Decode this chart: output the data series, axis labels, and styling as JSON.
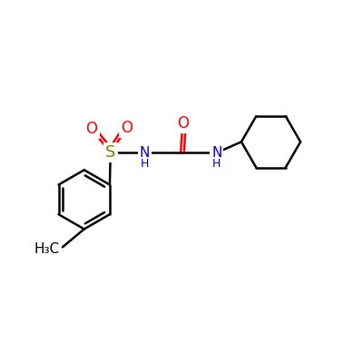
{
  "bg_color": "#ffffff",
  "bond_color": "#000000",
  "bond_width": 1.8,
  "S_color": "#808000",
  "O_color": "#ff0000",
  "N_color": "#0000cc",
  "figsize": [
    4.0,
    4.0
  ],
  "dpi": 100,
  "xlim": [
    0,
    10
  ],
  "ylim": [
    0,
    10
  ]
}
